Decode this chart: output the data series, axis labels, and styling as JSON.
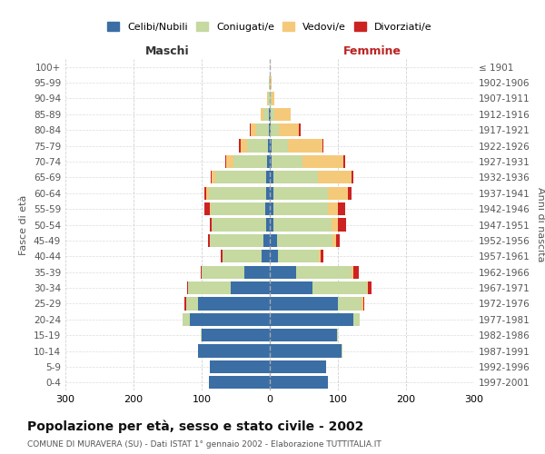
{
  "age_groups": [
    "0-4",
    "5-9",
    "10-14",
    "15-19",
    "20-24",
    "25-29",
    "30-34",
    "35-39",
    "40-44",
    "45-49",
    "50-54",
    "55-59",
    "60-64",
    "65-69",
    "70-74",
    "75-79",
    "80-84",
    "85-89",
    "90-94",
    "95-99",
    "100+"
  ],
  "birth_years": [
    "1997-2001",
    "1992-1996",
    "1987-1991",
    "1982-1986",
    "1977-1981",
    "1972-1976",
    "1967-1971",
    "1962-1966",
    "1957-1961",
    "1952-1956",
    "1947-1951",
    "1942-1946",
    "1937-1941",
    "1932-1936",
    "1927-1931",
    "1922-1926",
    "1917-1921",
    "1912-1916",
    "1907-1911",
    "1902-1906",
    "≤ 1901"
  ],
  "male": {
    "celibi": [
      90,
      88,
      105,
      100,
      118,
      105,
      58,
      38,
      12,
      10,
      5,
      7,
      5,
      5,
      4,
      3,
      2,
      1,
      0,
      0,
      0
    ],
    "coniugati": [
      0,
      0,
      0,
      2,
      10,
      18,
      62,
      62,
      58,
      78,
      80,
      80,
      85,
      75,
      50,
      30,
      18,
      8,
      3,
      1,
      0
    ],
    "vedovi": [
      0,
      0,
      0,
      0,
      0,
      0,
      0,
      0,
      0,
      0,
      0,
      1,
      3,
      5,
      10,
      10,
      8,
      5,
      1,
      0,
      0
    ],
    "divorziati": [
      0,
      0,
      0,
      0,
      0,
      2,
      2,
      2,
      2,
      3,
      3,
      8,
      3,
      2,
      2,
      2,
      1,
      0,
      0,
      0,
      0
    ]
  },
  "female": {
    "nubili": [
      85,
      82,
      105,
      98,
      122,
      100,
      62,
      38,
      12,
      10,
      5,
      5,
      5,
      5,
      3,
      2,
      1,
      1,
      0,
      0,
      0
    ],
    "coniugate": [
      0,
      0,
      2,
      2,
      10,
      35,
      80,
      82,
      60,
      82,
      85,
      80,
      80,
      65,
      45,
      25,
      12,
      5,
      2,
      0,
      0
    ],
    "vedove": [
      0,
      0,
      0,
      0,
      0,
      2,
      2,
      3,
      3,
      5,
      10,
      15,
      30,
      50,
      60,
      50,
      30,
      25,
      5,
      2,
      0
    ],
    "divorziate": [
      0,
      0,
      0,
      0,
      0,
      2,
      5,
      8,
      3,
      5,
      12,
      10,
      5,
      2,
      3,
      2,
      2,
      0,
      0,
      0,
      0
    ]
  },
  "colors": {
    "celibi_nubili": "#3A6EA5",
    "coniugati": "#C5D9A0",
    "vedovi": "#F5C97A",
    "divorziati": "#CC2222"
  },
  "xlim": 300,
  "title": "Popolazione per età, sesso e stato civile - 2002",
  "subtitle": "COMUNE DI MURAVERA (SU) - Dati ISTAT 1° gennaio 2002 - Elaborazione TUTTITALIA.IT",
  "ylabel_left": "Fasce di età",
  "ylabel_right": "Anni di nascita",
  "xlabel_left": "Maschi",
  "xlabel_right": "Femmine",
  "bg_color": "#FFFFFF",
  "grid_color": "#CCCCCC"
}
